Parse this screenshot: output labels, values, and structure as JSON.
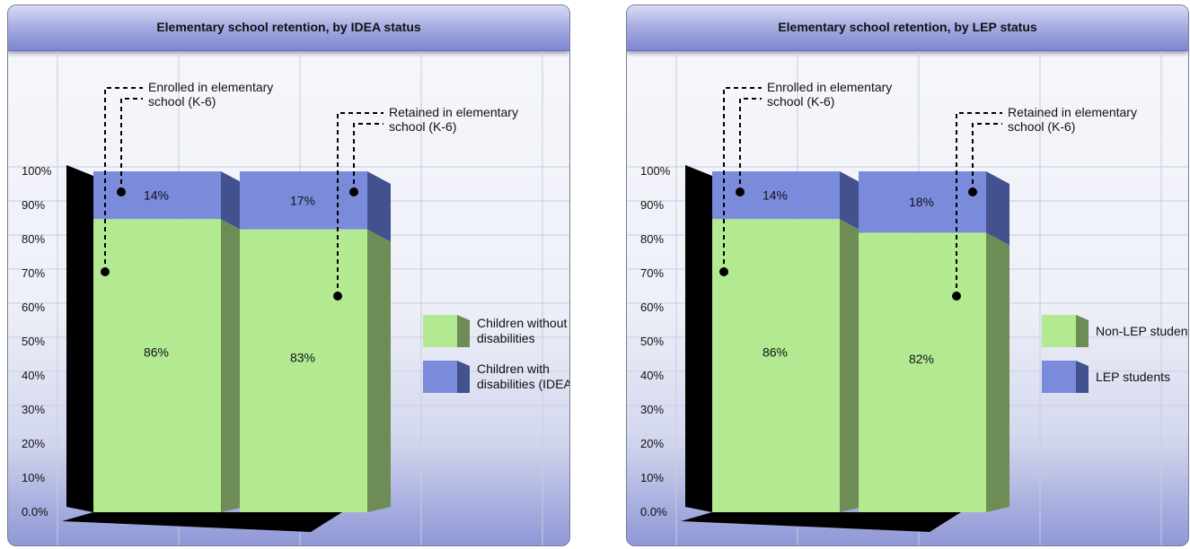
{
  "colors": {
    "segment_bottom": "#b3ea91",
    "segment_bottom_side": "#6d8c56",
    "segment_top": "#7b8bdc",
    "segment_top_side": "#44518f",
    "back_wall": "#000000",
    "grid": "#c8ccdf"
  },
  "chart_data": [
    {
      "type": "bar",
      "title": "Elementary school retention, by IDEA status",
      "y_ticks": [
        "0.0%",
        "10%",
        "20%",
        "30%",
        "40%",
        "50%",
        "60%",
        "70%",
        "80%",
        "90%",
        "100%"
      ],
      "ylim": [
        0,
        100
      ],
      "stacked": true,
      "grid": true,
      "legend_position": "right",
      "categories": [
        "Enrolled in elementary school (K-6)",
        "Retained in elementary school (K-6)"
      ],
      "series": [
        {
          "name": "Children without disabilities",
          "values": [
            86,
            83
          ],
          "labels": [
            "86%",
            "83%"
          ]
        },
        {
          "name": "Children with disabilities (IDEA)",
          "values": [
            14,
            17
          ],
          "labels": [
            "14%",
            "17%"
          ]
        }
      ],
      "annotations": [
        {
          "text": "Enrolled in elementary school (K-6)",
          "lines": [
            "Enrolled in elementary",
            "school (K-6)"
          ]
        },
        {
          "text": "Retained in elementary school (K-6)",
          "lines": [
            "Retained in elementary",
            "school (K-6)"
          ]
        }
      ]
    },
    {
      "type": "bar",
      "title": "Elementary school retention, by LEP status",
      "y_ticks": [
        "0.0%",
        "10%",
        "20%",
        "30%",
        "40%",
        "50%",
        "60%",
        "70%",
        "80%",
        "90%",
        "100%"
      ],
      "ylim": [
        0,
        100
      ],
      "stacked": true,
      "grid": true,
      "legend_position": "right",
      "categories": [
        "Enrolled in elementary school (K-6)",
        "Retained in elementary school (K-6)"
      ],
      "series": [
        {
          "name": "Non-LEP students",
          "values": [
            86,
            82
          ],
          "labels": [
            "86%",
            "82%"
          ]
        },
        {
          "name": "LEP students",
          "values": [
            14,
            18
          ],
          "labels": [
            "14%",
            "18%"
          ]
        }
      ],
      "annotations": [
        {
          "text": "Enrolled in elementary school (K-6)",
          "lines": [
            "Enrolled in elementary",
            "school (K-6)"
          ]
        },
        {
          "text": "Retained in elementary school (K-6)",
          "lines": [
            "Retained in elementary",
            "school (K-6)"
          ]
        }
      ]
    }
  ]
}
